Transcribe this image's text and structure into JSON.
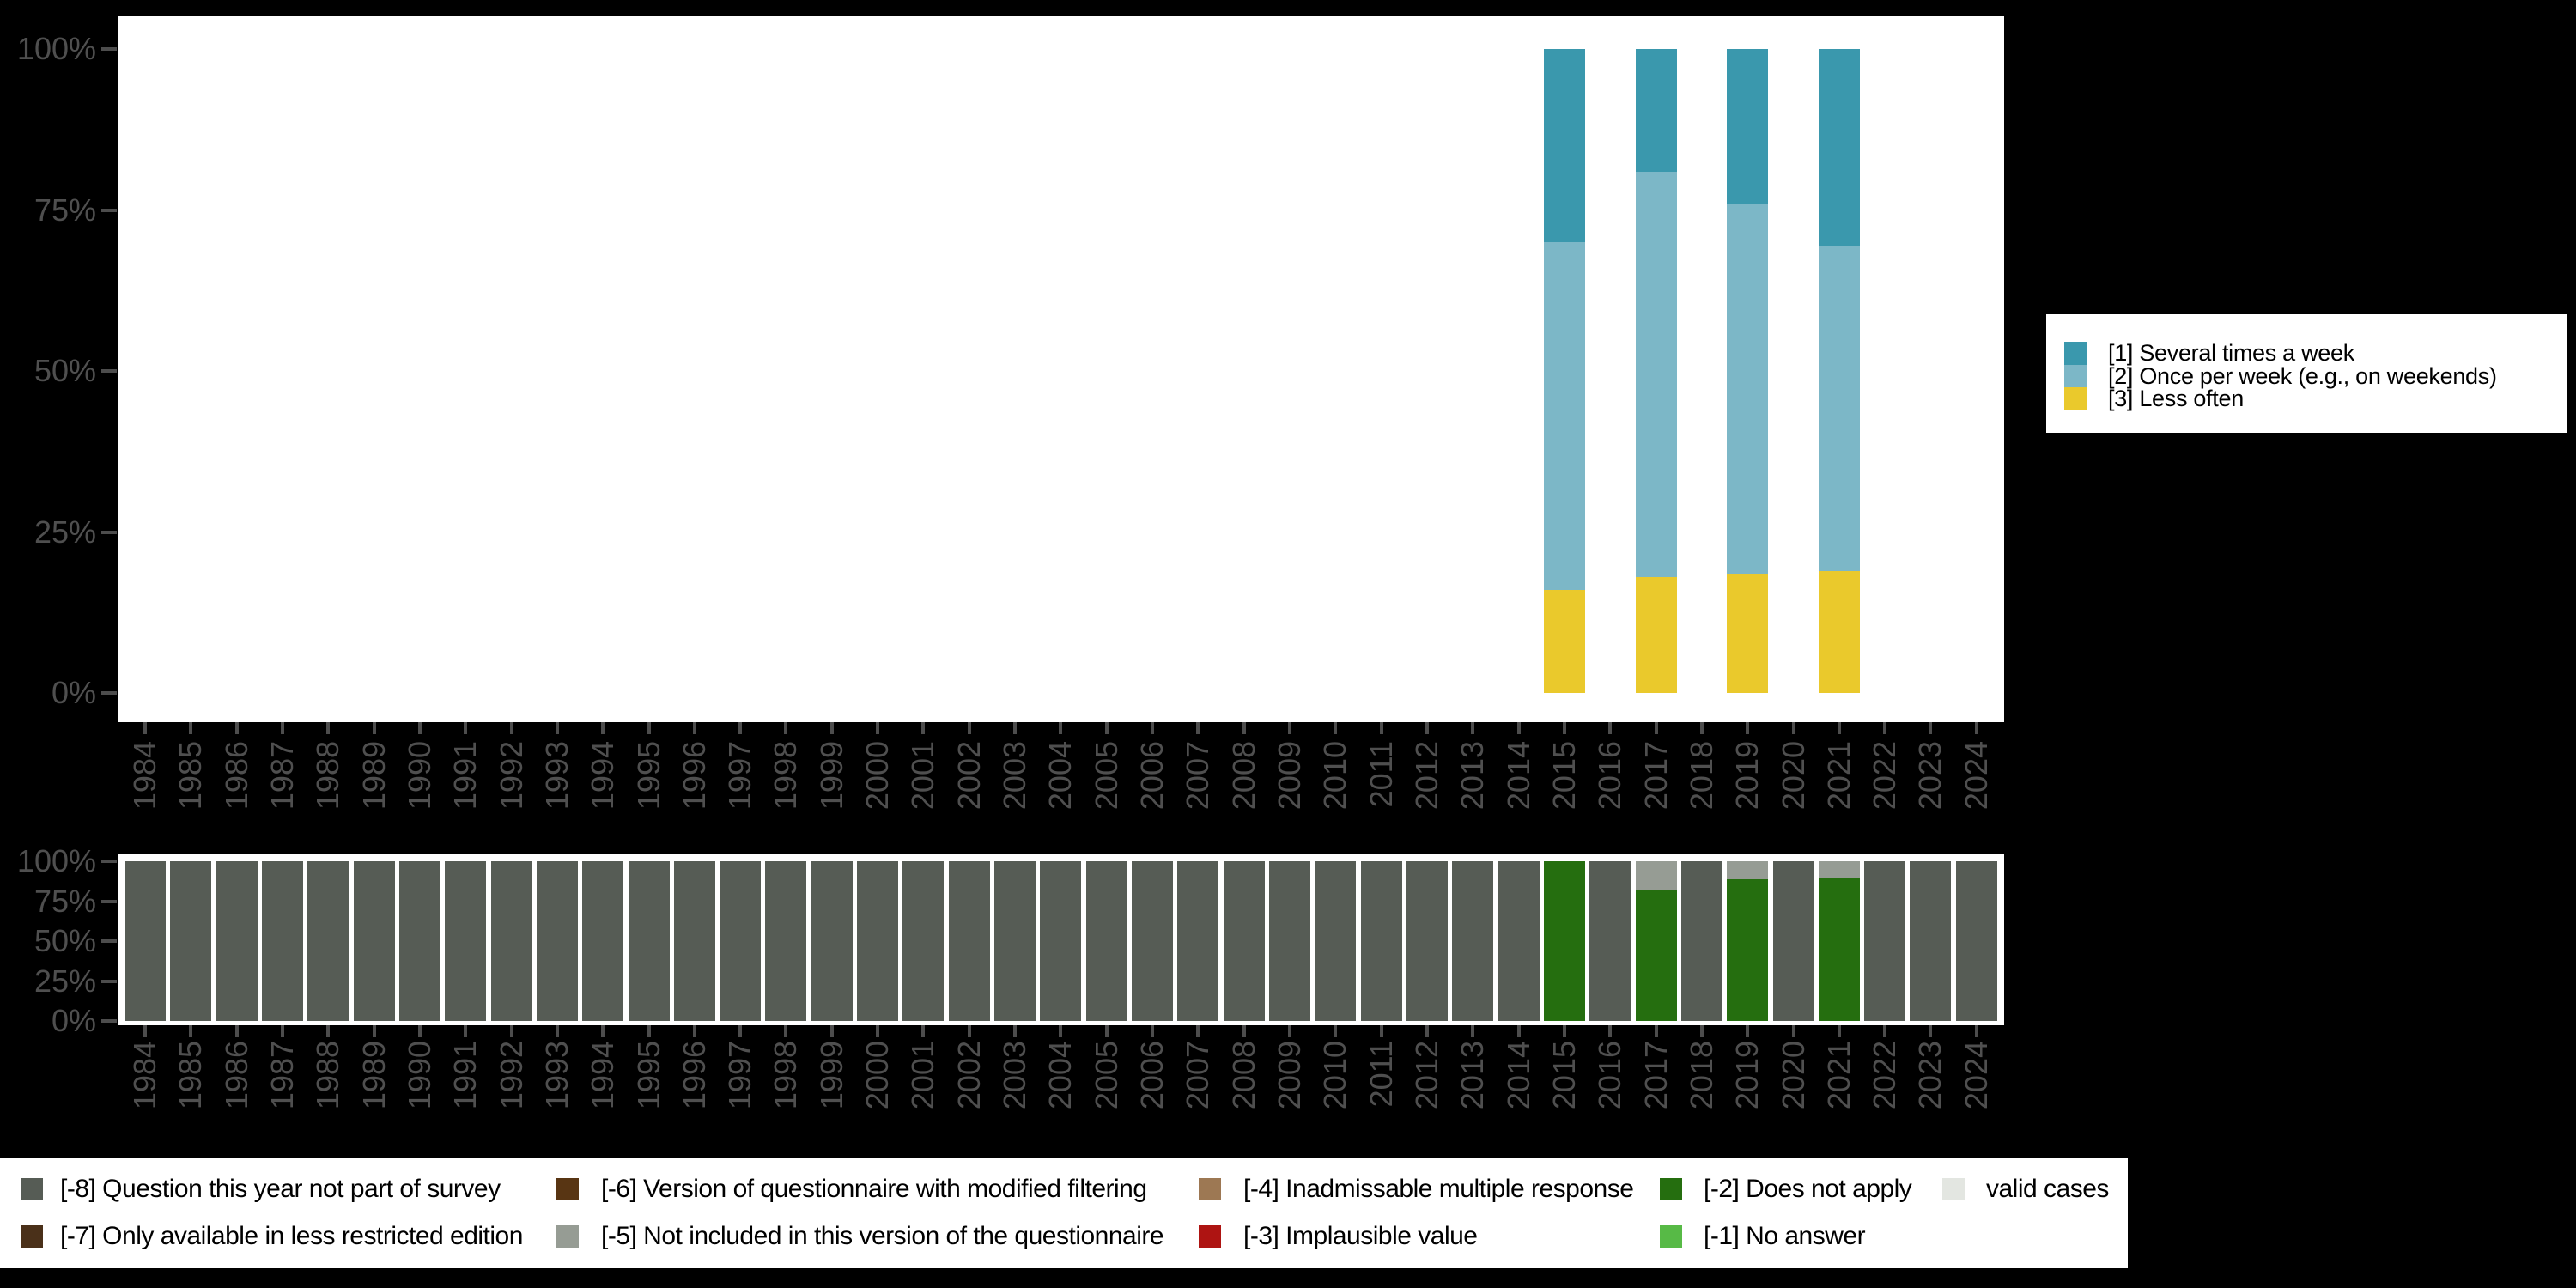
{
  "colors": {
    "background": "#000000",
    "plot_background": "#FFFFFF",
    "axis_tick": "#4D4D4D",
    "axis_label": "#4F4F4F",
    "legend_text": "#000000"
  },
  "chart_data": [
    {
      "id": "frequency",
      "type": "bar",
      "stacked": true,
      "title": "",
      "xlabel": "",
      "ylabel": "",
      "ylim": [
        0,
        100
      ],
      "grid": false,
      "legend_position": "right",
      "yticks": [
        "100%",
        "75%",
        "50%",
        "25%",
        "0%"
      ],
      "x": [
        "1984",
        "1985",
        "1986",
        "1987",
        "1988",
        "1989",
        "1990",
        "1991",
        "1992",
        "1993",
        "1994",
        "1995",
        "1996",
        "1997",
        "1998",
        "1999",
        "2000",
        "2001",
        "2002",
        "2003",
        "2004",
        "2005",
        "2006",
        "2007",
        "2008",
        "2009",
        "2010",
        "2011",
        "2012",
        "2013",
        "2014",
        "2015",
        "2016",
        "2017",
        "2018",
        "2019",
        "2020",
        "2021",
        "2022",
        "2023",
        "2024"
      ],
      "series": [
        {
          "name": "[1] Several times a week",
          "color": "#3A98AD",
          "values": [
            0,
            0,
            0,
            0,
            0,
            0,
            0,
            0,
            0,
            0,
            0,
            0,
            0,
            0,
            0,
            0,
            0,
            0,
            0,
            0,
            0,
            0,
            0,
            0,
            0,
            0,
            0,
            0,
            0,
            0,
            0,
            30,
            0,
            19,
            0,
            24,
            0,
            30.5,
            0,
            0,
            0
          ]
        },
        {
          "name": "[2] Once per week (e.g., on weekends)",
          "color": "#7CB7C7",
          "values": [
            0,
            0,
            0,
            0,
            0,
            0,
            0,
            0,
            0,
            0,
            0,
            0,
            0,
            0,
            0,
            0,
            0,
            0,
            0,
            0,
            0,
            0,
            0,
            0,
            0,
            0,
            0,
            0,
            0,
            0,
            0,
            54,
            0,
            63,
            0,
            57.5,
            0,
            50.5,
            0,
            0,
            0
          ]
        },
        {
          "name": "[3] Less often",
          "color": "#EAC92C",
          "values": [
            0,
            0,
            0,
            0,
            0,
            0,
            0,
            0,
            0,
            0,
            0,
            0,
            0,
            0,
            0,
            0,
            0,
            0,
            0,
            0,
            0,
            0,
            0,
            0,
            0,
            0,
            0,
            0,
            0,
            0,
            0,
            16,
            0,
            18,
            0,
            18.5,
            0,
            19,
            0,
            0,
            0
          ]
        }
      ]
    },
    {
      "id": "missing",
      "type": "bar",
      "stacked": true,
      "title": "",
      "xlabel": "",
      "ylabel": "",
      "ylim": [
        0,
        100
      ],
      "grid": false,
      "legend_position": "bottom",
      "yticks": [
        "100%",
        "75%",
        "50%",
        "25%",
        "0%"
      ],
      "x": [
        "1984",
        "1985",
        "1986",
        "1987",
        "1988",
        "1989",
        "1990",
        "1991",
        "1992",
        "1993",
        "1994",
        "1995",
        "1996",
        "1997",
        "1998",
        "1999",
        "2000",
        "2001",
        "2002",
        "2003",
        "2004",
        "2005",
        "2006",
        "2007",
        "2008",
        "2009",
        "2010",
        "2011",
        "2012",
        "2013",
        "2014",
        "2015",
        "2016",
        "2017",
        "2018",
        "2019",
        "2020",
        "2021",
        "2022",
        "2023",
        "2024"
      ],
      "series": [
        {
          "name": "[-8] Question this year not part of survey",
          "color": "#565C55",
          "values": [
            100,
            100,
            100,
            100,
            100,
            100,
            100,
            100,
            100,
            100,
            100,
            100,
            100,
            100,
            100,
            100,
            100,
            100,
            100,
            100,
            100,
            100,
            100,
            100,
            100,
            100,
            100,
            100,
            100,
            100,
            100,
            0,
            100,
            0,
            100,
            0,
            100,
            0,
            100,
            100,
            100
          ]
        },
        {
          "name": "[-5] Not included in this version of the questionnaire",
          "color": "#969C94",
          "values": [
            0,
            0,
            0,
            0,
            0,
            0,
            0,
            0,
            0,
            0,
            0,
            0,
            0,
            0,
            0,
            0,
            0,
            0,
            0,
            0,
            0,
            0,
            0,
            0,
            0,
            0,
            0,
            0,
            0,
            0,
            0,
            0,
            0,
            17.5,
            0,
            11.5,
            0,
            11,
            0,
            0,
            0
          ]
        },
        {
          "name": "[-2] Does not apply",
          "color": "#256E0F",
          "values": [
            0,
            0,
            0,
            0,
            0,
            0,
            0,
            0,
            0,
            0,
            0,
            0,
            0,
            0,
            0,
            0,
            0,
            0,
            0,
            0,
            0,
            0,
            0,
            0,
            0,
            0,
            0,
            0,
            0,
            0,
            0,
            100,
            0,
            82.5,
            0,
            88.5,
            0,
            89,
            0,
            0,
            0
          ]
        }
      ]
    }
  ],
  "frequency_legend": {
    "items": [
      {
        "label": "[1] Several times a week",
        "color": "#3A98AD"
      },
      {
        "label": "[2] Once per week (e.g., on weekends)",
        "color": "#7CB7C7"
      },
      {
        "label": "[3] Less often",
        "color": "#EAC92C"
      }
    ]
  },
  "missing_legend": {
    "columns": [
      [
        {
          "label": "[-8] Question this year not part of survey",
          "color": "#565C55"
        },
        {
          "label": "[-7] Only available in less restricted edition",
          "color": "#4A3019"
        }
      ],
      [
        {
          "label": "[-6] Version of questionnaire with modified filtering",
          "color": "#583513"
        },
        {
          "label": "[-5] Not included in this version of the questionnaire",
          "color": "#969C94"
        }
      ],
      [
        {
          "label": "[-4] Inadmissable multiple response",
          "color": "#9D7853"
        },
        {
          "label": "[-3] Implausible value",
          "color": "#AE1412"
        }
      ],
      [
        {
          "label": "[-2] Does not apply",
          "color": "#256E0F"
        },
        {
          "label": "[-1] No answer",
          "color": "#57BA46"
        }
      ],
      [
        {
          "label": "valid cases",
          "color": "#E3E6E1"
        }
      ]
    ]
  }
}
